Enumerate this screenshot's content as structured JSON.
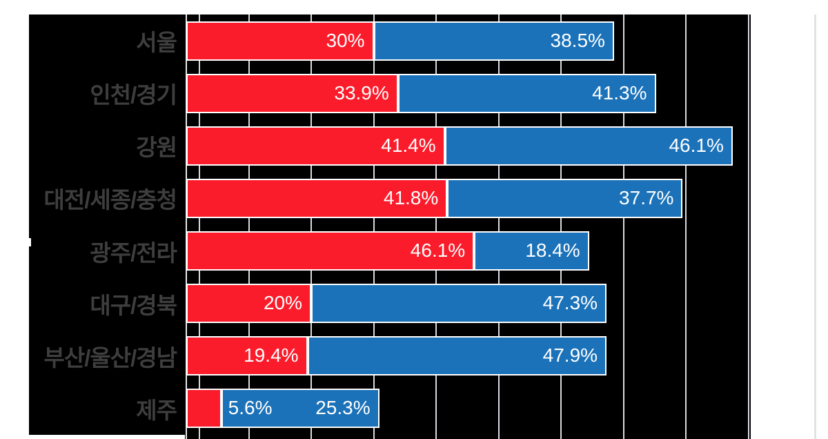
{
  "chart_data": {
    "type": "bar",
    "orientation": "horizontal-stacked",
    "title": "",
    "categories": [
      "서울",
      "인천/경기",
      "강원",
      "대전/세종/충청",
      "광주/전라",
      "대구/경북",
      "부산/울산/경남",
      "제주"
    ],
    "series": [
      {
        "name": "red-series",
        "color": "#fb1c2b",
        "values": [
          30,
          33.9,
          41.4,
          41.8,
          46.1,
          20,
          19.4,
          5.6
        ],
        "labels": [
          "30%",
          "33.9%",
          "41.4%",
          "41.8%",
          "46.1%",
          "20%",
          "19.4%",
          "5.6%"
        ]
      },
      {
        "name": "blue-series",
        "color": "#1b72b9",
        "values": [
          38.5,
          41.3,
          46.1,
          37.7,
          18.4,
          47.3,
          47.9,
          25.3
        ],
        "labels": [
          "38.5%",
          "41.3%",
          "46.1%",
          "37.7%",
          "18.4%",
          "47.3%",
          "47.9%",
          "25.3%"
        ]
      }
    ],
    "xlim": [
      0,
      90
    ],
    "gridline_interval_pct": 10,
    "extra_gridline_pct": 2.1,
    "grid_on": true,
    "legend": "none",
    "plot_background": "#000000",
    "gridline_color": "#d9dce2",
    "bar_border_color": "#ffffff",
    "category_label_color": "#3e3e3e",
    "value_label_color": "#ffffff"
  }
}
